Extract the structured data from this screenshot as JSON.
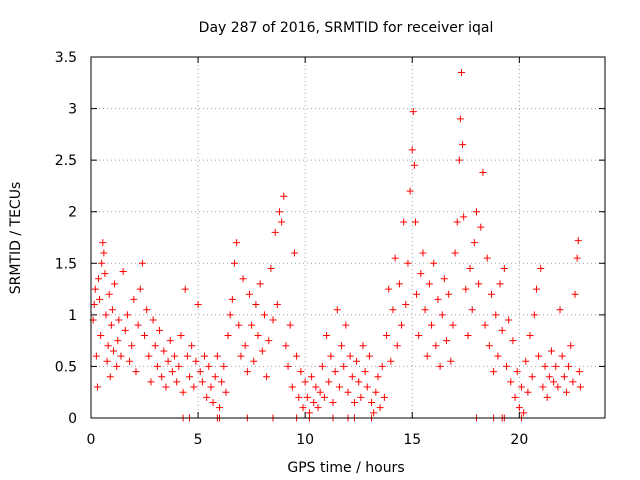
{
  "chart_data": {
    "type": "scatter",
    "title": "Day 287 of 2016, SRMTID for receiver iqal",
    "xlabel": "GPS time / hours",
    "ylabel": "SRMTID / TECUs",
    "xlim": [
      0,
      24
    ],
    "ylim": [
      0,
      3.5
    ],
    "xticks": [
      0,
      5,
      10,
      15,
      20
    ],
    "xtick_labels": [
      "0",
      "5",
      "10",
      "15",
      "20"
    ],
    "yticks": [
      0,
      0.5,
      1,
      1.5,
      2,
      2.5,
      3,
      3.5
    ],
    "ytick_labels": [
      "0",
      "0.5",
      "1",
      "1.5",
      "2",
      "2.5",
      "3",
      "3.5"
    ],
    "grid": true,
    "marker": "+",
    "color": "#ff0000",
    "series": [
      {
        "name": "iqal",
        "points": [
          [
            0.1,
            0.95
          ],
          [
            0.15,
            1.1
          ],
          [
            0.2,
            1.25
          ],
          [
            0.25,
            0.6
          ],
          [
            0.3,
            0.3
          ],
          [
            0.35,
            1.35
          ],
          [
            0.4,
            1.15
          ],
          [
            0.45,
            0.8
          ],
          [
            0.5,
            1.5
          ],
          [
            0.55,
            1.7
          ],
          [
            0.6,
            1.6
          ],
          [
            0.65,
            1.4
          ],
          [
            0.7,
            1.0
          ],
          [
            0.75,
            0.55
          ],
          [
            0.8,
            0.7
          ],
          [
            0.85,
            1.2
          ],
          [
            0.9,
            0.4
          ],
          [
            0.95,
            0.9
          ],
          [
            1.0,
            1.05
          ],
          [
            1.05,
            0.65
          ],
          [
            1.1,
            1.3
          ],
          [
            1.2,
            0.5
          ],
          [
            1.25,
            0.75
          ],
          [
            1.3,
            0.95
          ],
          [
            1.4,
            0.6
          ],
          [
            1.5,
            1.42
          ],
          [
            1.6,
            0.85
          ],
          [
            1.7,
            1.0
          ],
          [
            1.8,
            0.55
          ],
          [
            1.9,
            0.7
          ],
          [
            2.0,
            1.15
          ],
          [
            2.1,
            0.45
          ],
          [
            2.2,
            0.9
          ],
          [
            2.3,
            1.25
          ],
          [
            2.4,
            1.5
          ],
          [
            2.5,
            0.8
          ],
          [
            2.6,
            1.05
          ],
          [
            2.7,
            0.6
          ],
          [
            2.8,
            0.35
          ],
          [
            2.9,
            0.95
          ],
          [
            3.0,
            0.7
          ],
          [
            3.1,
            0.5
          ],
          [
            3.2,
            0.85
          ],
          [
            3.3,
            0.4
          ],
          [
            3.4,
            0.65
          ],
          [
            3.5,
            0.3
          ],
          [
            3.6,
            0.55
          ],
          [
            3.7,
            0.75
          ],
          [
            3.8,
            0.45
          ],
          [
            3.9,
            0.6
          ],
          [
            4.0,
            0.35
          ],
          [
            4.1,
            0.5
          ],
          [
            4.2,
            0.8
          ],
          [
            4.3,
            0.25
          ],
          [
            4.4,
            1.25
          ],
          [
            4.5,
            0.6
          ],
          [
            4.6,
            0.4
          ],
          [
            4.7,
            0.7
          ],
          [
            4.8,
            0.3
          ],
          [
            4.9,
            0.55
          ],
          [
            5.0,
            1.1
          ],
          [
            5.1,
            0.45
          ],
          [
            5.2,
            0.35
          ],
          [
            5.3,
            0.6
          ],
          [
            5.4,
            0.2
          ],
          [
            5.5,
            0.5
          ],
          [
            5.6,
            0.3
          ],
          [
            5.7,
            0.15
          ],
          [
            5.8,
            0.4
          ],
          [
            5.9,
            0.6
          ],
          [
            6.0,
            0.1
          ],
          [
            6.1,
            0.35
          ],
          [
            6.2,
            0.5
          ],
          [
            6.3,
            0.25
          ],
          [
            6.4,
            0.8
          ],
          [
            6.5,
            1.0
          ],
          [
            6.6,
            1.15
          ],
          [
            6.7,
            1.5
          ],
          [
            6.8,
            1.7
          ],
          [
            6.9,
            0.9
          ],
          [
            7.0,
            0.6
          ],
          [
            7.1,
            1.35
          ],
          [
            7.2,
            0.7
          ],
          [
            7.3,
            0.45
          ],
          [
            7.4,
            1.2
          ],
          [
            7.5,
            0.9
          ],
          [
            7.6,
            0.55
          ],
          [
            7.7,
            1.1
          ],
          [
            7.8,
            0.8
          ],
          [
            7.9,
            1.3
          ],
          [
            8.0,
            0.65
          ],
          [
            8.1,
            1.0
          ],
          [
            8.2,
            0.4
          ],
          [
            8.3,
            0.75
          ],
          [
            8.4,
            1.45
          ],
          [
            8.5,
            0.95
          ],
          [
            8.6,
            1.8
          ],
          [
            8.7,
            1.1
          ],
          [
            8.8,
            2.0
          ],
          [
            8.9,
            1.9
          ],
          [
            9.0,
            2.15
          ],
          [
            9.1,
            0.7
          ],
          [
            9.2,
            0.5
          ],
          [
            9.3,
            0.9
          ],
          [
            9.4,
            0.3
          ],
          [
            9.5,
            1.6
          ],
          [
            9.6,
            0.6
          ],
          [
            9.7,
            0.2
          ],
          [
            9.8,
            0.45
          ],
          [
            9.9,
            0.1
          ],
          [
            10.0,
            0.35
          ],
          [
            10.1,
            0.2
          ],
          [
            10.2,
            0.05
          ],
          [
            10.3,
            0.4
          ],
          [
            10.4,
            0.15
          ],
          [
            10.5,
            0.3
          ],
          [
            10.6,
            0.1
          ],
          [
            10.7,
            0.25
          ],
          [
            10.8,
            0.5
          ],
          [
            10.9,
            0.2
          ],
          [
            11.0,
            0.8
          ],
          [
            11.1,
            0.35
          ],
          [
            11.2,
            0.6
          ],
          [
            11.3,
            0.15
          ],
          [
            11.4,
            0.45
          ],
          [
            11.5,
            1.05
          ],
          [
            11.6,
            0.3
          ],
          [
            11.7,
            0.7
          ],
          [
            11.8,
            0.5
          ],
          [
            11.9,
            0.9
          ],
          [
            12.0,
            0.25
          ],
          [
            12.1,
            0.6
          ],
          [
            12.2,
            0.4
          ],
          [
            12.3,
            0.15
          ],
          [
            12.4,
            0.55
          ],
          [
            12.5,
            0.35
          ],
          [
            12.6,
            0.2
          ],
          [
            12.7,
            0.7
          ],
          [
            12.8,
            0.45
          ],
          [
            12.9,
            0.3
          ],
          [
            13.0,
            0.6
          ],
          [
            13.1,
            0.15
          ],
          [
            13.2,
            0.05
          ],
          [
            13.3,
            0.25
          ],
          [
            13.4,
            0.4
          ],
          [
            13.5,
            0.1
          ],
          [
            13.6,
            0.5
          ],
          [
            13.7,
            0.2
          ],
          [
            13.8,
            0.8
          ],
          [
            13.9,
            1.25
          ],
          [
            14.0,
            0.55
          ],
          [
            14.1,
            1.05
          ],
          [
            14.2,
            1.55
          ],
          [
            14.3,
            0.7
          ],
          [
            14.4,
            1.3
          ],
          [
            14.5,
            0.9
          ],
          [
            14.6,
            1.9
          ],
          [
            14.7,
            1.1
          ],
          [
            14.8,
            1.5
          ],
          [
            14.9,
            2.2
          ],
          [
            15.0,
            2.6
          ],
          [
            15.05,
            2.97
          ],
          [
            15.1,
            2.45
          ],
          [
            15.15,
            1.9
          ],
          [
            15.2,
            1.2
          ],
          [
            15.3,
            0.8
          ],
          [
            15.4,
            1.4
          ],
          [
            15.5,
            1.6
          ],
          [
            15.6,
            1.05
          ],
          [
            15.7,
            0.6
          ],
          [
            15.8,
            1.3
          ],
          [
            15.9,
            0.9
          ],
          [
            16.0,
            1.5
          ],
          [
            16.1,
            0.7
          ],
          [
            16.2,
            1.15
          ],
          [
            16.3,
            0.5
          ],
          [
            16.4,
            1.0
          ],
          [
            16.5,
            1.35
          ],
          [
            16.6,
            0.75
          ],
          [
            16.7,
            1.2
          ],
          [
            16.8,
            0.55
          ],
          [
            16.9,
            0.9
          ],
          [
            17.0,
            1.6
          ],
          [
            17.1,
            1.9
          ],
          [
            17.2,
            2.5
          ],
          [
            17.25,
            2.9
          ],
          [
            17.3,
            3.35
          ],
          [
            17.35,
            2.65
          ],
          [
            17.4,
            1.95
          ],
          [
            17.5,
            1.25
          ],
          [
            17.6,
            0.8
          ],
          [
            17.7,
            1.45
          ],
          [
            17.8,
            1.05
          ],
          [
            17.9,
            1.7
          ],
          [
            18.0,
            2.0
          ],
          [
            18.1,
            1.3
          ],
          [
            18.2,
            1.85
          ],
          [
            18.3,
            2.38
          ],
          [
            18.4,
            0.9
          ],
          [
            18.5,
            1.55
          ],
          [
            18.6,
            0.7
          ],
          [
            18.7,
            1.2
          ],
          [
            18.8,
            0.45
          ],
          [
            18.9,
            1.0
          ],
          [
            19.0,
            0.6
          ],
          [
            19.1,
            1.3
          ],
          [
            19.2,
            0.85
          ],
          [
            19.3,
            1.45
          ],
          [
            19.4,
            0.5
          ],
          [
            19.5,
            0.95
          ],
          [
            19.6,
            0.35
          ],
          [
            19.7,
            0.75
          ],
          [
            19.8,
            0.2
          ],
          [
            19.9,
            0.45
          ],
          [
            20.0,
            0.1
          ],
          [
            20.1,
            0.3
          ],
          [
            20.2,
            0.05
          ],
          [
            20.3,
            0.55
          ],
          [
            20.4,
            0.25
          ],
          [
            20.5,
            0.8
          ],
          [
            20.6,
            0.4
          ],
          [
            20.7,
            1.0
          ],
          [
            20.8,
            1.25
          ],
          [
            20.9,
            0.6
          ],
          [
            21.0,
            1.45
          ],
          [
            21.1,
            0.3
          ],
          [
            21.2,
            0.5
          ],
          [
            21.3,
            0.2
          ],
          [
            21.4,
            0.4
          ],
          [
            21.5,
            0.65
          ],
          [
            21.6,
            0.35
          ],
          [
            21.7,
            0.5
          ],
          [
            21.8,
            0.3
          ],
          [
            21.9,
            1.05
          ],
          [
            22.0,
            0.6
          ],
          [
            22.1,
            0.4
          ],
          [
            22.2,
            0.25
          ],
          [
            22.3,
            0.5
          ],
          [
            22.4,
            0.7
          ],
          [
            22.5,
            0.35
          ],
          [
            22.6,
            1.2
          ],
          [
            22.7,
            1.55
          ],
          [
            22.75,
            1.72
          ],
          [
            22.8,
            0.45
          ],
          [
            22.85,
            0.3
          ],
          [
            4.3,
            0
          ],
          [
            4.6,
            0
          ],
          [
            5.9,
            0
          ],
          [
            6.0,
            0
          ],
          [
            7.3,
            0
          ],
          [
            8.5,
            0
          ],
          [
            9.6,
            0
          ],
          [
            10.2,
            0
          ],
          [
            11.3,
            0
          ],
          [
            12.0,
            0
          ],
          [
            12.3,
            0
          ],
          [
            13.1,
            0
          ],
          [
            18.0,
            0
          ],
          [
            18.8,
            0
          ],
          [
            19.2,
            0
          ],
          [
            19.3,
            0
          ],
          [
            20.1,
            0
          ]
        ]
      }
    ]
  }
}
